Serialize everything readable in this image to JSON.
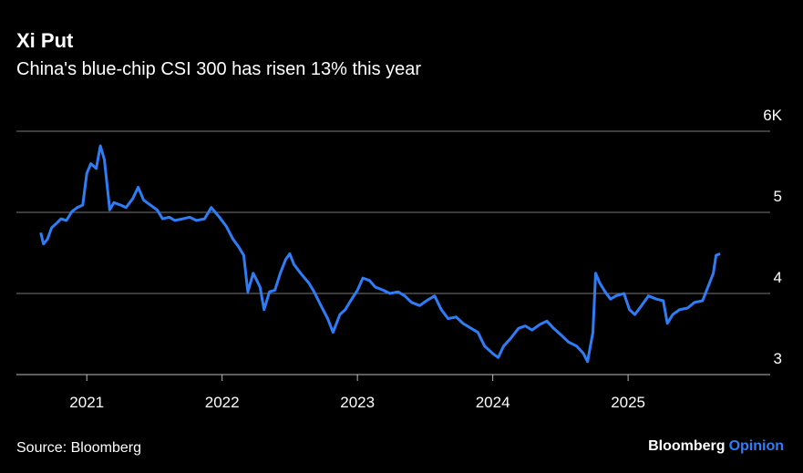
{
  "chart_data": {
    "type": "line",
    "title": "Xi Put",
    "subtitle": "China's blue-chip CSI 300 has risen 13% this year",
    "source": "Source: Bloomberg",
    "brand": "Bloomberg",
    "brand_suffix": "Opinion",
    "x": [
      2020.66,
      2020.68,
      2020.71,
      2020.74,
      2020.78,
      2020.81,
      2020.85,
      2020.89,
      2020.93,
      2020.97,
      2021.0,
      2021.03,
      2021.07,
      2021.1,
      2021.13,
      2021.17,
      2021.2,
      2021.25,
      2021.29,
      2021.34,
      2021.38,
      2021.42,
      2021.47,
      2021.52,
      2021.56,
      2021.61,
      2021.65,
      2021.71,
      2021.76,
      2021.81,
      2021.87,
      2021.92,
      2021.98,
      2022.03,
      2022.08,
      2022.12,
      2022.16,
      2022.19,
      2022.23,
      2022.28,
      2022.31,
      2022.35,
      2022.39,
      2022.43,
      2022.47,
      2022.5,
      2022.53,
      2022.58,
      2022.64,
      2022.68,
      2022.73,
      2022.78,
      2022.82,
      2022.87,
      2022.91,
      2022.95,
      2023.0,
      2023.04,
      2023.09,
      2023.13,
      2023.19,
      2023.24,
      2023.3,
      2023.35,
      2023.4,
      2023.46,
      2023.51,
      2023.57,
      2023.62,
      2023.67,
      2023.73,
      2023.78,
      2023.84,
      2023.89,
      2023.94,
      2024.0,
      2024.04,
      2024.08,
      2024.13,
      2024.19,
      2024.24,
      2024.29,
      2024.35,
      2024.4,
      2024.45,
      2024.51,
      2024.56,
      2024.62,
      2024.67,
      2024.7,
      2024.74,
      2024.76,
      2024.79,
      2024.83,
      2024.87,
      2024.91,
      2024.97,
      2025.01,
      2025.05,
      2025.1,
      2025.15,
      2025.21,
      2025.26,
      2025.29,
      2025.33,
      2025.38,
      2025.44,
      2025.49,
      2025.55,
      2025.59,
      2025.63,
      2025.65,
      2025.68
    ],
    "series": [
      {
        "name": "CSI 300",
        "color": "#2f7df6",
        "values": [
          4.75,
          4.61,
          4.67,
          4.81,
          4.87,
          4.92,
          4.9,
          5.01,
          5.06,
          5.09,
          5.48,
          5.6,
          5.54,
          5.82,
          5.65,
          5.03,
          5.12,
          5.09,
          5.06,
          5.17,
          5.31,
          5.15,
          5.09,
          5.03,
          4.92,
          4.94,
          4.9,
          4.92,
          4.94,
          4.9,
          4.92,
          5.06,
          4.94,
          4.83,
          4.67,
          4.58,
          4.47,
          4.02,
          4.25,
          4.08,
          3.8,
          4.02,
          4.04,
          4.25,
          4.42,
          4.49,
          4.36,
          4.25,
          4.13,
          4.02,
          3.85,
          3.69,
          3.52,
          3.74,
          3.8,
          3.91,
          4.04,
          4.19,
          4.16,
          4.08,
          4.04,
          4.0,
          4.02,
          3.97,
          3.89,
          3.85,
          3.91,
          3.97,
          3.8,
          3.69,
          3.71,
          3.63,
          3.57,
          3.52,
          3.35,
          3.26,
          3.21,
          3.35,
          3.44,
          3.57,
          3.6,
          3.55,
          3.62,
          3.66,
          3.57,
          3.48,
          3.4,
          3.35,
          3.26,
          3.16,
          3.52,
          4.25,
          4.13,
          4.02,
          3.93,
          3.97,
          4.0,
          3.8,
          3.74,
          3.85,
          3.97,
          3.93,
          3.91,
          3.63,
          3.74,
          3.8,
          3.82,
          3.89,
          3.91,
          4.08,
          4.25,
          4.47,
          4.49
        ]
      }
    ],
    "xlim": [
      2020.48,
      2026.05
    ],
    "xticks": [
      2021,
      2022,
      2023,
      2024,
      2025
    ],
    "ylim": [
      3,
      6
    ],
    "yticks": [
      3,
      4,
      5,
      {
        "value": 6,
        "label": "6K"
      }
    ],
    "grid": true
  }
}
